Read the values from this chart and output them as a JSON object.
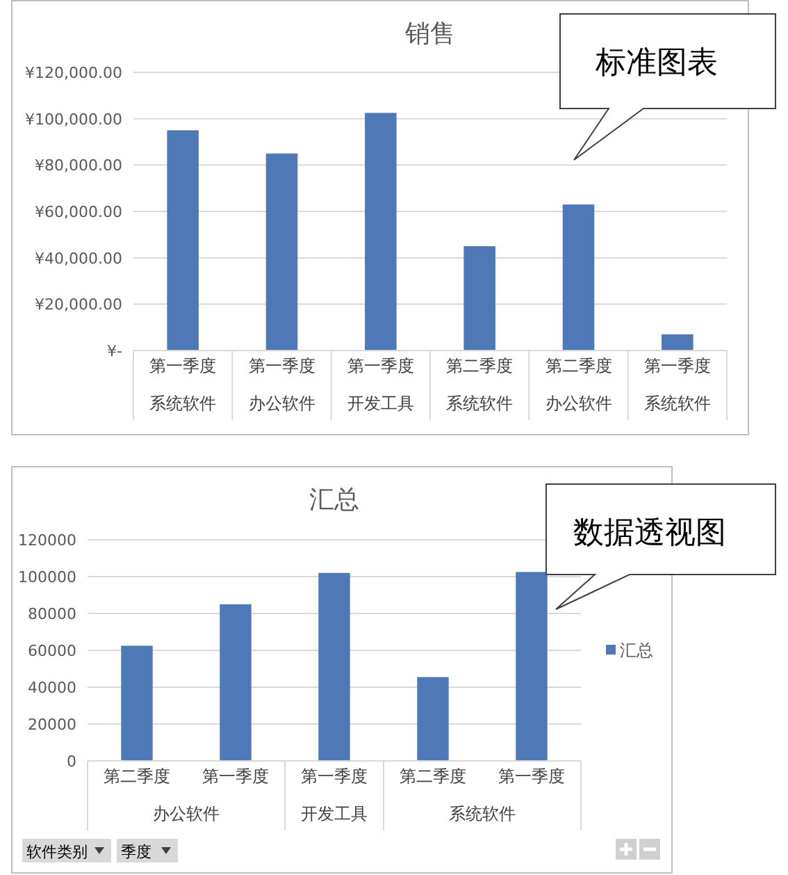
{
  "chart_data": [
    {
      "type": "bar",
      "title": "销售",
      "categories": [
        "第一季度系统软件",
        "第一季度办公软件",
        "第一季度开发工具",
        "第二季度系统软件",
        "第二季度办公软件",
        "第一季度系统软件"
      ],
      "values": [
        95000,
        85000,
        102500,
        45000,
        63000,
        7000
      ],
      "color": "#4e79b6",
      "ylim": [
        0,
        120000
      ],
      "yticks": [
        {
          "value": 0,
          "label": "¥-"
        },
        {
          "value": 20000,
          "label": "¥20,000.00"
        },
        {
          "value": 40000,
          "label": "¥40,000.00"
        },
        {
          "value": 60000,
          "label": "¥60,000.00"
        },
        {
          "value": 80000,
          "label": "¥80,000.00"
        },
        {
          "value": 100000,
          "label": "¥100,000.00"
        },
        {
          "value": 120000,
          "label": "¥120,000.00"
        }
      ],
      "grid": "y",
      "annotations": [
        "标准图表"
      ]
    },
    {
      "type": "bar",
      "title": "汇总",
      "categories": [
        "第二季度",
        "第一季度",
        "第一季度",
        "第二季度",
        "第一季度"
      ],
      "series": [
        {
          "name": "汇总",
          "color": "#4e79b6",
          "values": [
            62500,
            85000,
            102000,
            45500,
            102500
          ]
        }
      ],
      "ylim": [
        0,
        120000
      ],
      "yticks": [
        0,
        20000,
        40000,
        60000,
        80000,
        100000,
        120000
      ],
      "grid": "y",
      "legend": "right",
      "annotations": [
        "数据透视图",
        "办公软件",
        "开发工具",
        "系统软件",
        "软件类别",
        "季度"
      ]
    }
  ]
}
